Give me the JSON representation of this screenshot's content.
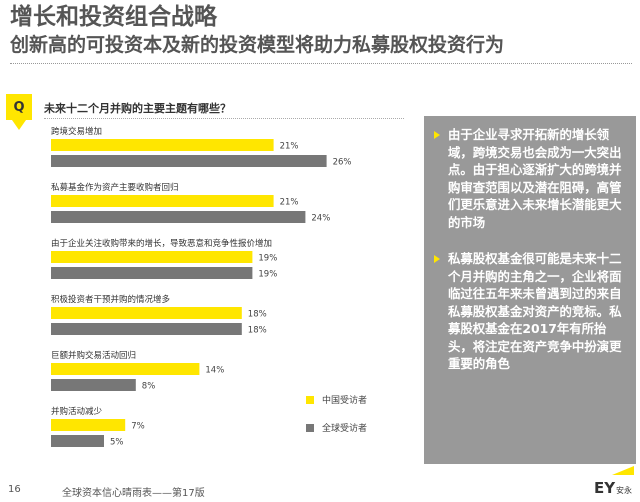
{
  "header": {
    "title": "增长和投资组合战略",
    "subtitle": "创新高的可投资本及新的投资模型将助力私募股权投资行为"
  },
  "question": {
    "badge": "Q",
    "text": "未来十二个月并购的主要主题有哪些？"
  },
  "chart_data": {
    "type": "bar",
    "orientation": "horizontal",
    "categories": [
      "跨境交易增加",
      "私募基金作为资产主要收购者回归",
      "由于企业关注收购带来的增长，导致恶意和竞争性报价增加",
      "积极投资者干预并购的情况增多",
      "巨额并购交易活动回归",
      "并购活动减少"
    ],
    "series": [
      {
        "name": "中国受访者",
        "color": "#ffe600",
        "values": [
          21,
          21,
          19,
          18,
          14,
          7
        ]
      },
      {
        "name": "全球受访者",
        "color": "#777777",
        "values": [
          26,
          24,
          19,
          18,
          8,
          5
        ]
      }
    ],
    "value_suffix": "%",
    "xlim": [
      0,
      30
    ],
    "grid": false,
    "legend": "bottom-right"
  },
  "legend": [
    {
      "label": "中国受访者",
      "color": "#ffe600"
    },
    {
      "label": "全球受访者",
      "color": "#777777"
    }
  ],
  "panel": {
    "bullets": [
      "由于企业寻求开拓新的增长领域，跨境交易也会成为一大突出点。由于担心逐渐扩大的跨境并购审查范围以及潜在阻碍，高管们更乐意进入未来增长潜能更大的市场",
      "私募股权基金很可能是未来十二个月并购的主角之一，企业将面临过往五年来未曾遇到过的来自私募股权基金对资产的竞标。私募股权基金在2017年有所抬头，将注定在资产竞争中扮演更重要的角色"
    ]
  },
  "footer": {
    "page_number": "16",
    "publication": "全球资本信心晴雨表——第17版",
    "logo_text": "EY",
    "logo_cn": "安永"
  }
}
